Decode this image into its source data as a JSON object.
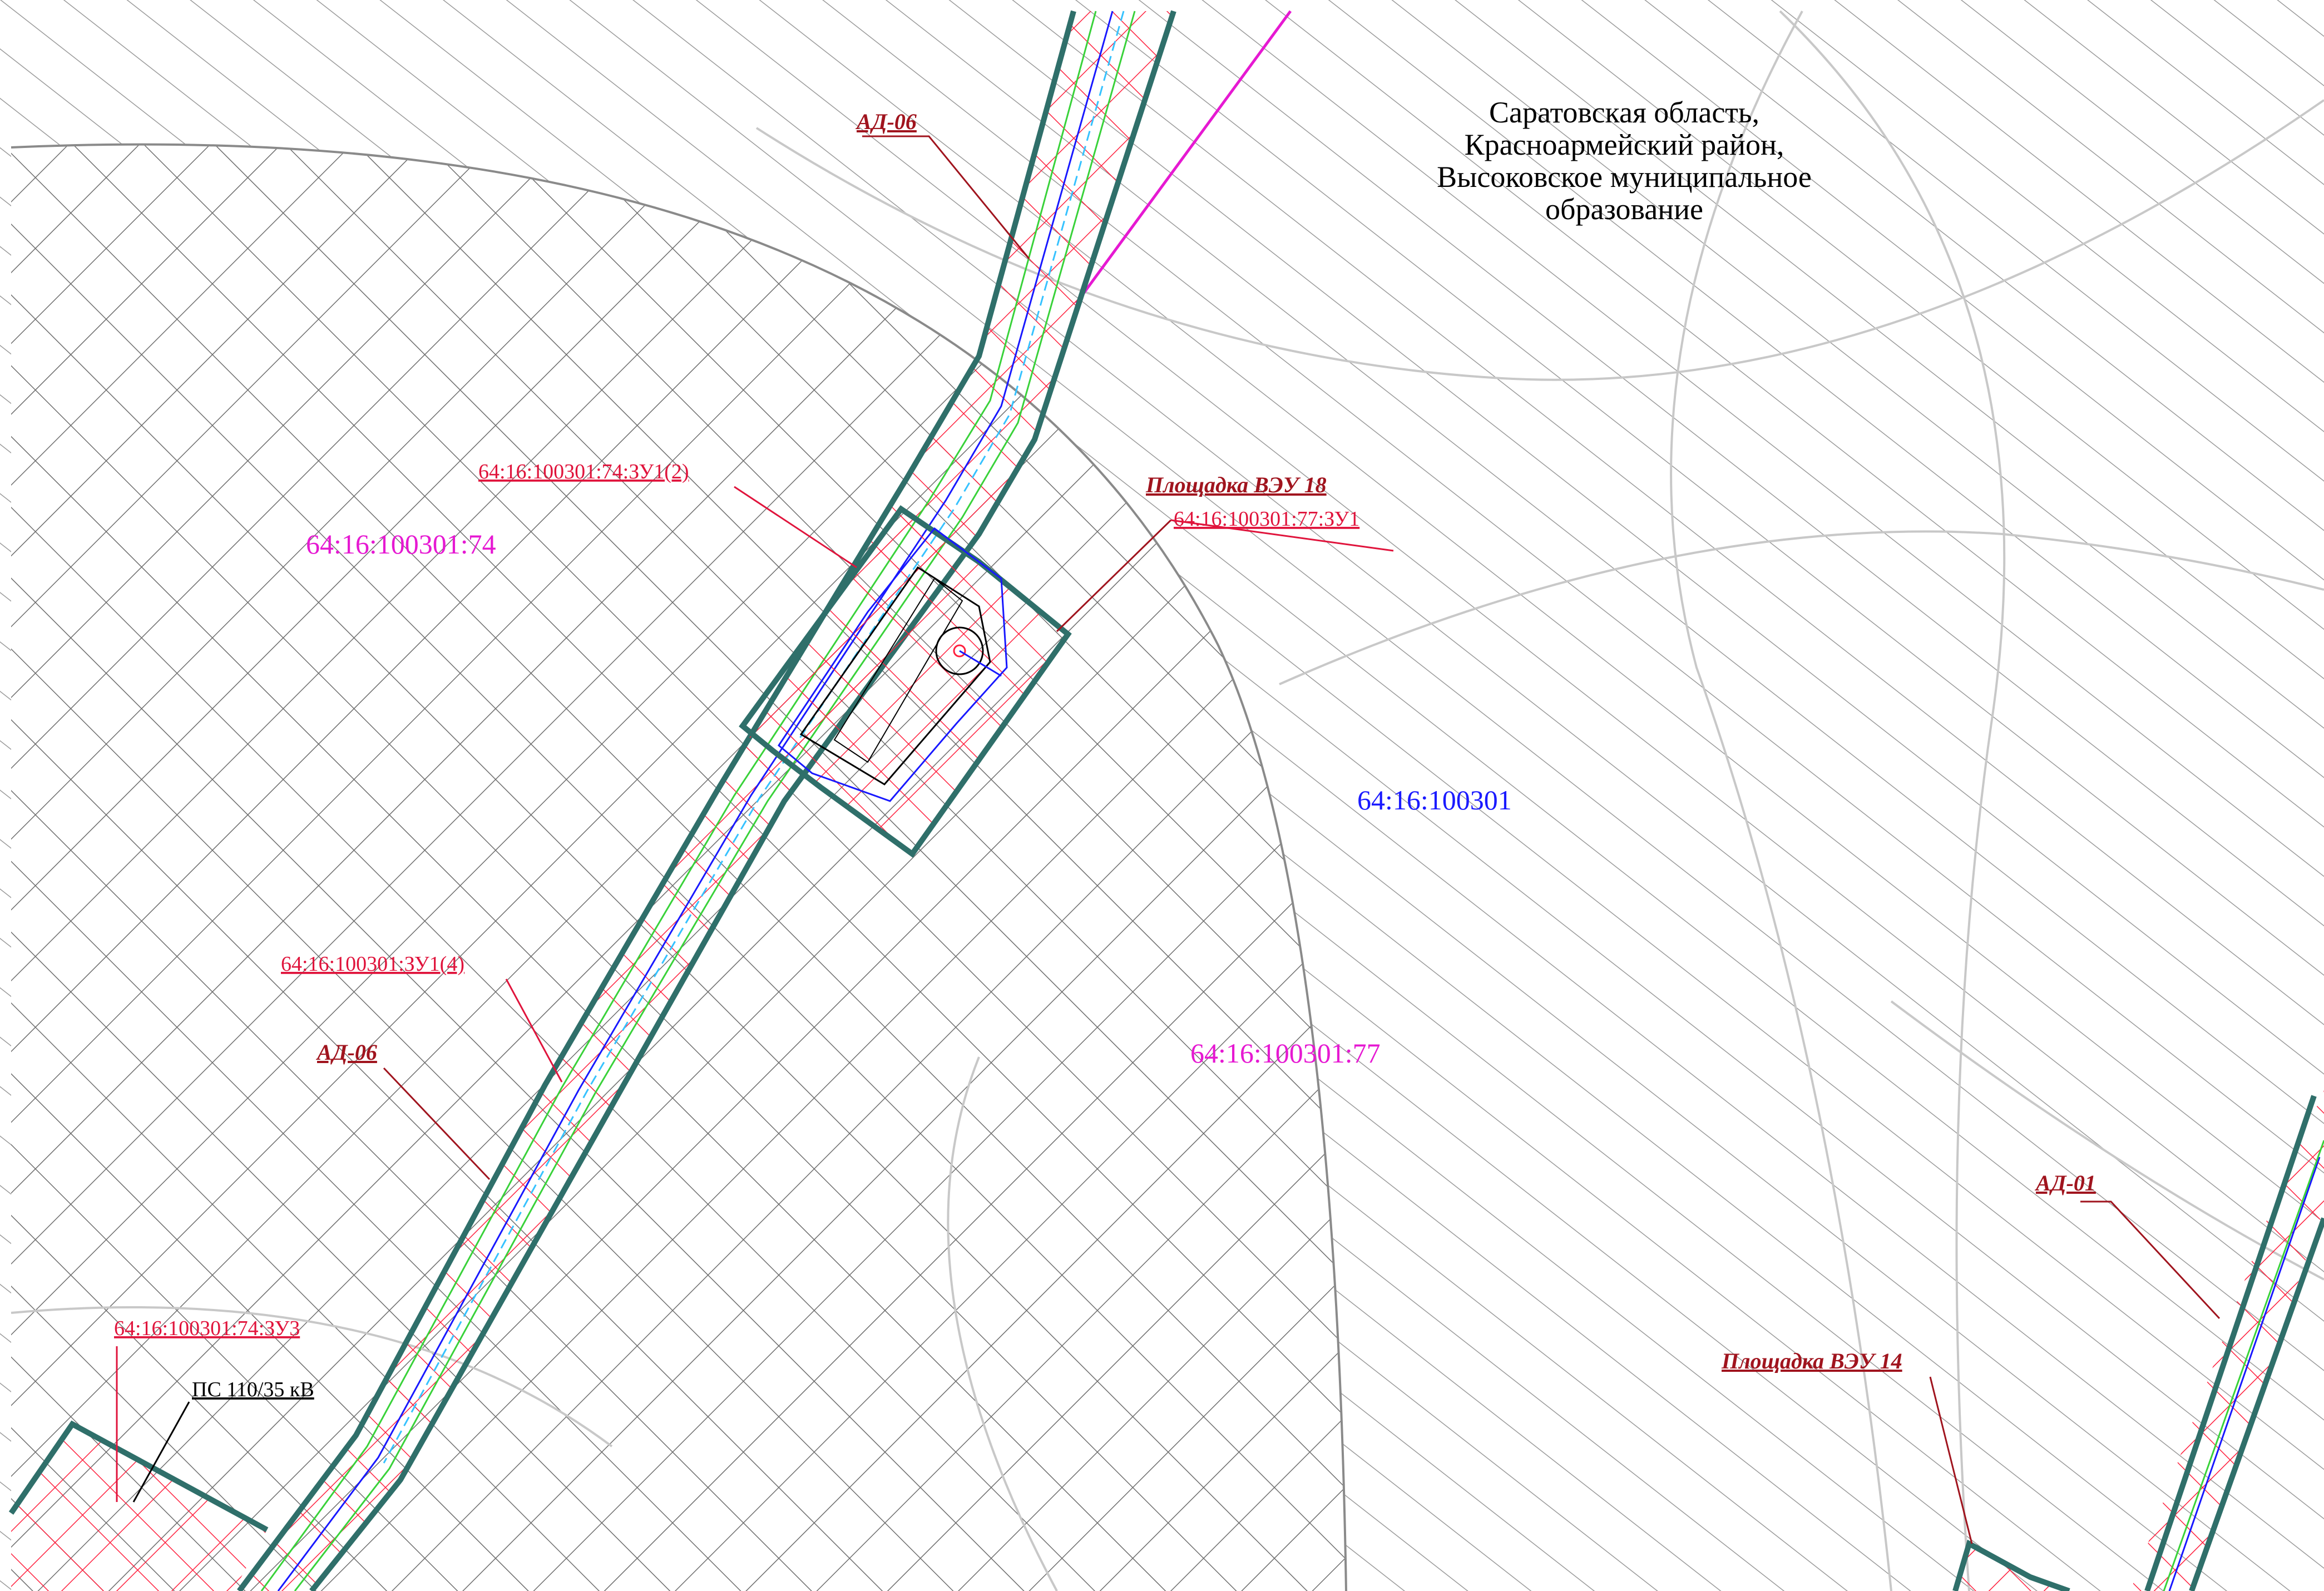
{
  "colors": {
    "boundary": "#2f6f6a",
    "road_red": "#ff1f3d",
    "line_blue": "#1818ff",
    "line_green": "#39d23a",
    "line_cyan": "#36c2ff",
    "magenta": "#e619d2",
    "label_dark_red": "#a0141e",
    "label_red": "#e0143c",
    "hatch_gray": "#8a8a8a",
    "contour_gray": "#c8c8c8"
  },
  "region": {
    "line1": "Саратовская область,",
    "line2": "Красноармейский район,",
    "line3": "Высоковское муниципальное",
    "line4": "образование"
  },
  "labels": {
    "ad06_top": "АД-06",
    "ad06_mid": "АД-06",
    "ad01": "АД-01",
    "vey18": "Площадка ВЭУ 18",
    "vey14": "Площадка ВЭУ 14",
    "zu74_1_2": "64:16:100301:74:ЗУ1(2)",
    "zu77_1": "64:16:100301:77:ЗУ1",
    "zu1_4": "64:16:100301:ЗУ1(4)",
    "zu74_3": "64:16:100301:74:ЗУ3",
    "ps": "ПС 110/35 кВ",
    "parcel74": "64:16:100301:74",
    "parcel77": "64:16:100301:77",
    "quarter": "64:16:100301"
  }
}
